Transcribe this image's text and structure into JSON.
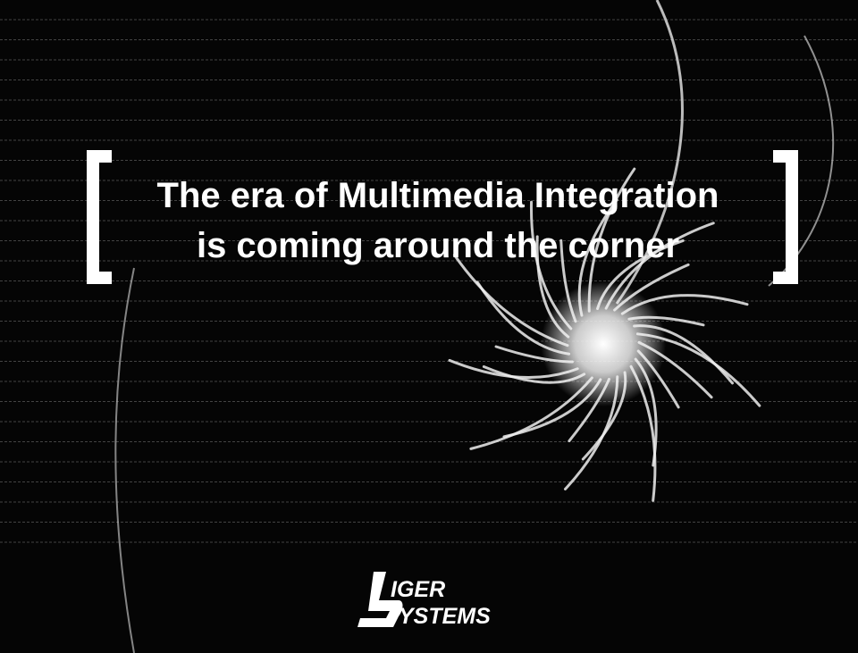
{
  "headline": {
    "lines": [
      "The era of Multimedia Integration",
      "is coming around the corner"
    ]
  },
  "logo": {
    "lines": [
      "IGER",
      "YSTEMS"
    ]
  }
}
